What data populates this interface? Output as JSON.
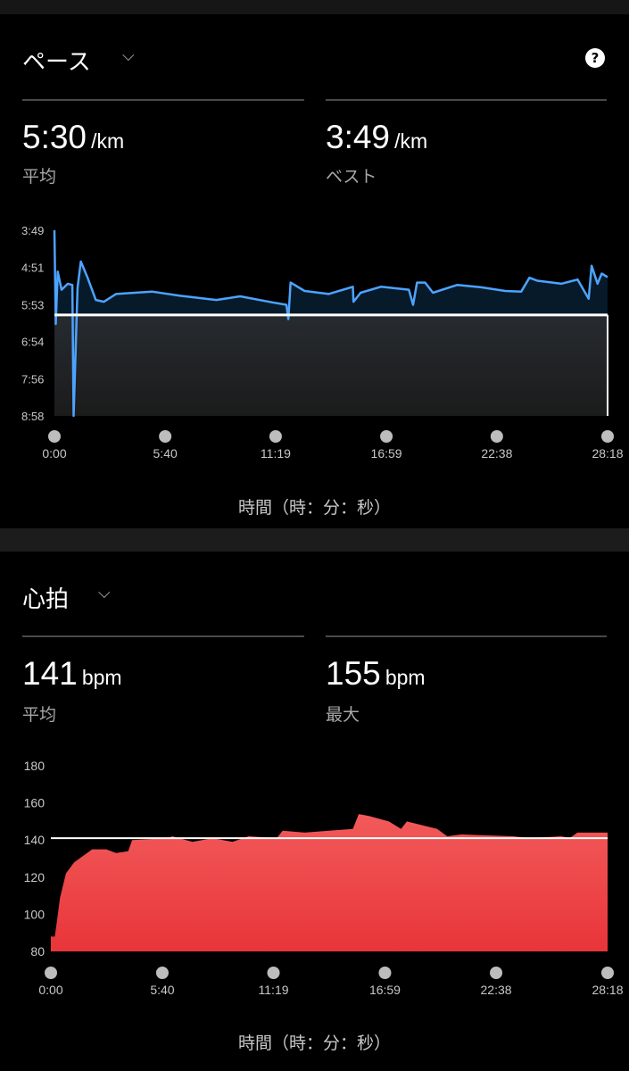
{
  "pace": {
    "title": "ペース",
    "avg_value": "5:30",
    "avg_unit": "/km",
    "avg_label": "平均",
    "best_value": "3:49",
    "best_unit": "/km",
    "best_label": "ベスト",
    "help_icon": "?",
    "x_axis_title": "時間（時：分：秒）"
  },
  "heart": {
    "title": "心拍",
    "avg_value": "141",
    "avg_unit": "bpm",
    "avg_label": "平均",
    "max_value": "155",
    "max_unit": "bpm",
    "max_label": "最大",
    "x_axis_title": "時間（時：分：秒）"
  },
  "chart_data": [
    {
      "type": "area",
      "y_ticks": [
        "3:49",
        "4:51",
        "5:53",
        "6:54",
        "7:56",
        "8:58"
      ],
      "x_ticks": [
        "0:00",
        "5:40",
        "11:19",
        "16:59",
        "22:38",
        "28:18"
      ],
      "xlabel": "時間（時：分：秒）",
      "ylim": [
        "3:49",
        "8:58"
      ],
      "y_inverted": true,
      "reference_line": "6:10",
      "line_color": "#4da3ff",
      "points": [
        [
          "0:00",
          "3:49"
        ],
        [
          "0:04",
          "6:25"
        ],
        [
          "0:10",
          "4:58"
        ],
        [
          "0:22",
          "5:28"
        ],
        [
          "0:41",
          "5:18"
        ],
        [
          "0:55",
          "5:20"
        ],
        [
          "0:59",
          "8:58"
        ],
        [
          "1:11",
          "5:25"
        ],
        [
          "1:21",
          "4:41"
        ],
        [
          "1:42",
          "5:08"
        ],
        [
          "2:07",
          "5:45"
        ],
        [
          "2:32",
          "5:48"
        ],
        [
          "3:09",
          "5:35"
        ],
        [
          "4:59",
          "5:31"
        ],
        [
          "6:26",
          "5:38"
        ],
        [
          "8:17",
          "5:45"
        ],
        [
          "9:30",
          "5:39"
        ],
        [
          "11:09",
          "5:49"
        ],
        [
          "11:52",
          "5:53"
        ],
        [
          "11:58",
          "6:17"
        ],
        [
          "12:05",
          "5:16"
        ],
        [
          "12:48",
          "5:30"
        ],
        [
          "14:02",
          "5:35"
        ],
        [
          "15:16",
          "5:23"
        ],
        [
          "15:18",
          "5:48"
        ],
        [
          "15:40",
          "5:33"
        ],
        [
          "16:42",
          "5:23"
        ],
        [
          "18:08",
          "5:28"
        ],
        [
          "18:21",
          "5:53"
        ],
        [
          "18:33",
          "5:16"
        ],
        [
          "18:58",
          "5:16"
        ],
        [
          "19:22",
          "5:33"
        ],
        [
          "20:36",
          "5:20"
        ],
        [
          "21:50",
          "5:24"
        ],
        [
          "23:04",
          "5:30"
        ],
        [
          "23:53",
          "5:31"
        ],
        [
          "24:18",
          "5:08"
        ],
        [
          "24:42",
          "5:13"
        ],
        [
          "25:56",
          "5:18"
        ],
        [
          "26:46",
          "5:11"
        ],
        [
          "27:20",
          "5:43"
        ],
        [
          "27:29",
          "4:48"
        ],
        [
          "27:47",
          "5:18"
        ],
        [
          "28:00",
          "5:01"
        ],
        [
          "28:18",
          "5:07"
        ]
      ]
    },
    {
      "type": "area",
      "y_ticks": [
        "180",
        "160",
        "140",
        "120",
        "100",
        "80"
      ],
      "x_ticks": [
        "0:00",
        "5:40",
        "11:19",
        "16:59",
        "22:38",
        "28:18"
      ],
      "xlabel": "時間（時：分：秒）",
      "ylim": [
        80,
        180
      ],
      "reference_line": 141,
      "fill_color": "#e8353a",
      "points": [
        [
          "0:00",
          88
        ],
        [
          "0:12",
          88
        ],
        [
          "0:16",
          93
        ],
        [
          "0:28",
          109
        ],
        [
          "0:46",
          122
        ],
        [
          "1:11",
          128
        ],
        [
          "1:35",
          131
        ],
        [
          "2:06",
          135
        ],
        [
          "2:49",
          135
        ],
        [
          "3:19",
          133
        ],
        [
          "3:56",
          134
        ],
        [
          "4:08",
          140
        ],
        [
          "5:58",
          141
        ],
        [
          "6:10",
          142
        ],
        [
          "7:12",
          139
        ],
        [
          "8:13",
          141
        ],
        [
          "9:14",
          139
        ],
        [
          "10:03",
          142
        ],
        [
          "11:29",
          141
        ],
        [
          "11:47",
          145
        ],
        [
          "12:54",
          144
        ],
        [
          "15:21",
          146
        ],
        [
          "15:39",
          154
        ],
        [
          "16:10",
          153
        ],
        [
          "17:11",
          150
        ],
        [
          "17:48",
          146
        ],
        [
          "18:06",
          150
        ],
        [
          "19:38",
          146
        ],
        [
          "20:09",
          142
        ],
        [
          "20:52",
          143
        ],
        [
          "23:31",
          142
        ],
        [
          "24:20",
          141
        ],
        [
          "25:57",
          142
        ],
        [
          "26:22",
          141
        ],
        [
          "26:46",
          144
        ],
        [
          "28:18",
          144
        ]
      ]
    }
  ]
}
